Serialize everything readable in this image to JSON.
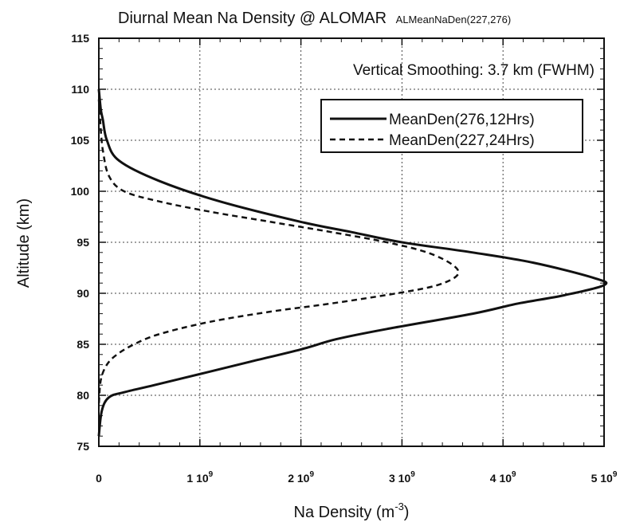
{
  "chart_data": {
    "type": "line",
    "title": "Diurnal Mean Na Density @ ALOMAR",
    "title_suffix": "ALMeanNaDen(227,276)",
    "xlabel": "Na Density (m",
    "xlabel_exp": "-3",
    "xlabel_close": ")",
    "ylabel": "Altitude (km)",
    "xlim": [
      0,
      5000000000
    ],
    "ylim": [
      75,
      115
    ],
    "x_ticks": [
      {
        "value": 0,
        "label": "0",
        "exp": ""
      },
      {
        "value": 1000000000,
        "label": "1 10",
        "exp": "9"
      },
      {
        "value": 2000000000,
        "label": "2 10",
        "exp": "9"
      },
      {
        "value": 3000000000,
        "label": "3 10",
        "exp": "9"
      },
      {
        "value": 4000000000,
        "label": "4 10",
        "exp": "9"
      },
      {
        "value": 5000000000,
        "label": "5 10",
        "exp": "9"
      }
    ],
    "y_ticks": [
      75,
      80,
      85,
      90,
      95,
      100,
      105,
      110,
      115
    ],
    "grid": true,
    "annotation": "Vertical Smoothing: 3.7 km (FWHM)",
    "legend_position": "top-right",
    "series": [
      {
        "name": "MeanDen(276,12Hrs)",
        "style": "solid",
        "color": "#111111",
        "x": [
          0,
          20000000,
          40000000,
          80000000,
          200000000,
          600000000,
          1200000000,
          2000000000,
          2500000000,
          3000000000,
          3700000000,
          4300000000,
          4900000000,
          5000000000,
          4600000000,
          4150000000,
          3700000000,
          2850000000,
          2350000000,
          2000000000,
          1500000000,
          1050000000,
          550000000,
          250000000,
          100000000,
          30000000,
          0
        ],
        "y": [
          110,
          108,
          107,
          105,
          103,
          101,
          99,
          97,
          96,
          95,
          94,
          93,
          91.5,
          90.8,
          89.8,
          89,
          88,
          86.5,
          85.5,
          84.5,
          83.3,
          82.2,
          81,
          80.3,
          79.8,
          78.5,
          76
        ]
      },
      {
        "name": "MeanDen(227,24Hrs)",
        "style": "dashed",
        "color": "#111111",
        "x": [
          0,
          20000000,
          40000000,
          100000000,
          250000000,
          600000000,
          1100000000,
          1700000000,
          2300000000,
          2850000000,
          3250000000,
          3500000000,
          3550000000,
          3350000000,
          2950000000,
          2300000000,
          1700000000,
          1100000000,
          600000000,
          350000000,
          180000000,
          80000000,
          20000000,
          0
        ],
        "y": [
          109,
          106,
          104,
          101.5,
          100,
          99,
          98,
          97,
          96,
          95,
          94,
          92.8,
          91.8,
          90.8,
          90,
          89,
          88.2,
          87.2,
          86,
          85,
          84,
          83,
          81.5,
          79
        ]
      }
    ]
  }
}
